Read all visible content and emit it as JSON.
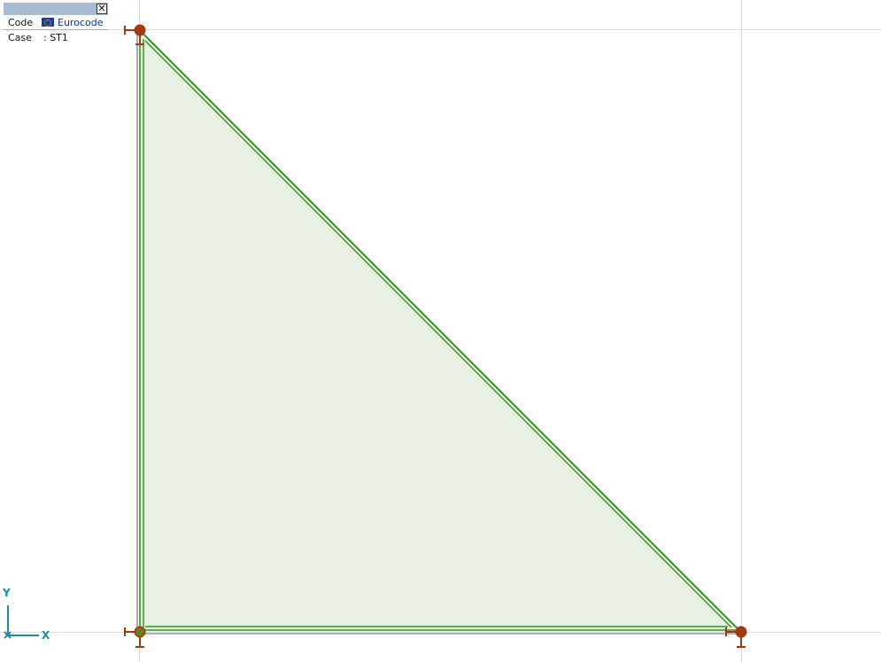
{
  "info_panel": {
    "code_label": "Code",
    "code_value": "Eurocode",
    "case_label": "Case",
    "case_value": ": ST1",
    "close_glyph": "✕"
  },
  "axes": {
    "x_label": "X",
    "y_label": "Y"
  },
  "colors": {
    "panel_fill": "#e8f0e5",
    "panel_edge": "#2e9a12",
    "support_color": "#a23a0e",
    "axis_color": "#1a8ea0",
    "grid_line_color": "#eadfc6"
  },
  "icons": {
    "flag": "eu-flag-icon",
    "close": "close-icon",
    "support": "support-icon",
    "axis": "axis-icon"
  }
}
